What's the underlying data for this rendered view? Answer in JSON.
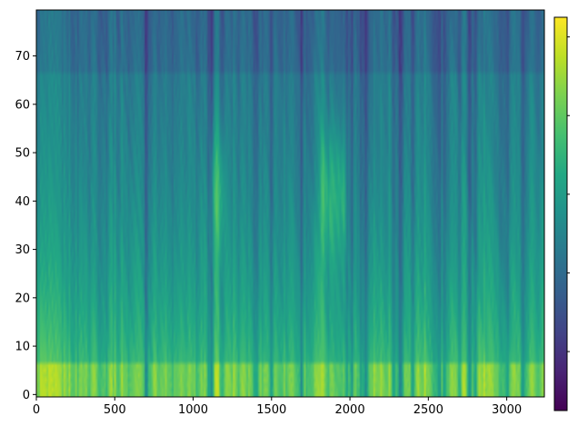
{
  "chart_data": {
    "type": "heatmap",
    "title": "",
    "xlabel": "",
    "ylabel": "",
    "colormap": "viridis",
    "xlim": [
      0,
      3240
    ],
    "ylim": [
      -0.5,
      79.5
    ],
    "x_ticks": [
      0,
      500,
      1000,
      1500,
      2000,
      2500,
      3000
    ],
    "y_ticks": [
      0,
      10,
      20,
      30,
      40,
      50,
      60,
      70
    ],
    "n_frames": 3240,
    "n_bins": 80,
    "colorbar": {
      "ticks": [
        0.15,
        0.35,
        0.55,
        0.75,
        0.95
      ],
      "labels": [
        "",
        "",
        "",
        "",
        ""
      ]
    },
    "low_band_rows": 7,
    "high_energy_frames": [
      1130,
      1150,
      1170,
      1180,
      1830,
      1850,
      1870,
      1890,
      1910,
      1930,
      1950,
      1960
    ],
    "low_energy_frames": [
      700,
      1100,
      1120,
      1400,
      1500,
      1690,
      1980,
      2010,
      2070,
      2100,
      2280,
      2320,
      2400,
      2570,
      2600,
      2700,
      2760,
      2800,
      3000,
      3100
    ],
    "grid": false
  }
}
